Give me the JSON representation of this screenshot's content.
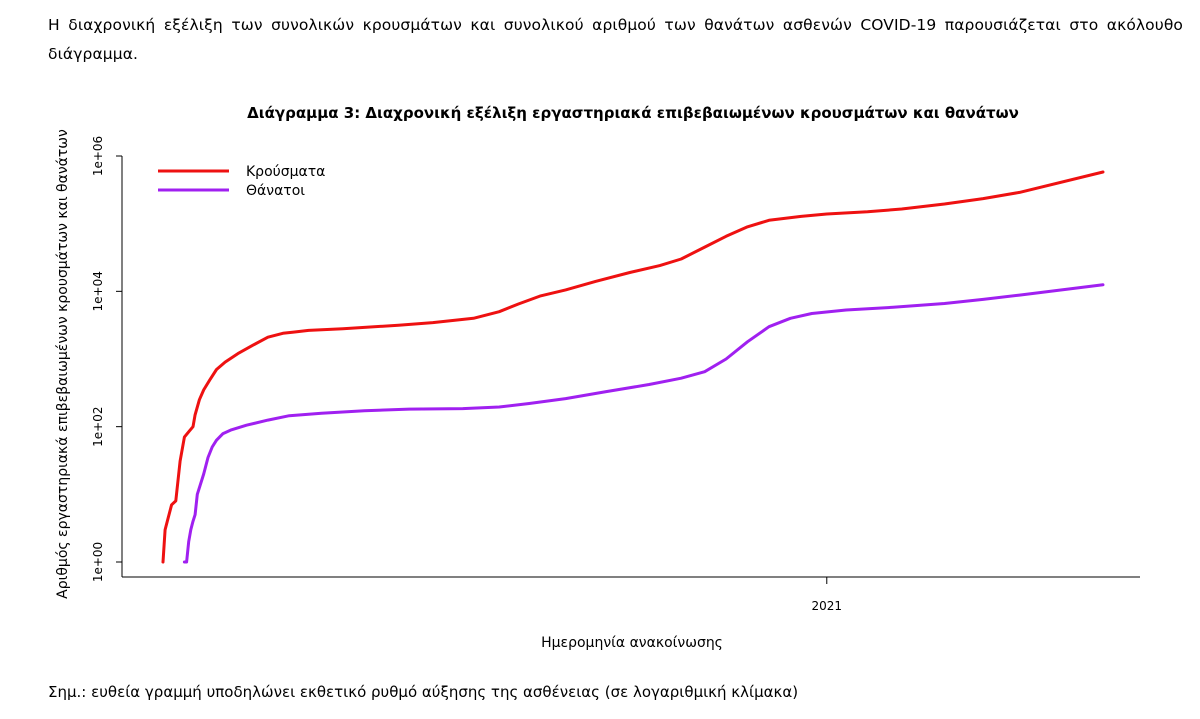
{
  "intro_text": "Η διαχρονική εξέλιξη των συνολικών κρουσμάτων και συνολικού αριθμού των θανάτων ασθενών COVID-19 παρουσιάζεται στο ακόλουθο διάγραμμα.",
  "note_text": "Σημ.: ευθεία γραμμή υποδηλώνει εκθετικό ρυθμό αύξησης της ασθένειας (σε λογαριθμική κλίμακα)",
  "chart_data": {
    "type": "line",
    "title": "Διάγραμμα 3: Διαχρονική εξέλιξη εργαστηριακά επιβεβαιωμένων κρουσμάτων και θανάτων",
    "xlabel": "Ημερομηνία ανακοίνωσης",
    "ylabel": "Αριθμός εργαστηριακά επιβεβαιωμένων κρουσμάτων και θανάτων",
    "y_scale": "log10",
    "ylim": [
      1,
      1000000
    ],
    "yticks": [
      {
        "value": 1,
        "label": "1e+00"
      },
      {
        "value": 100,
        "label": "1e+02"
      },
      {
        "value": 10000,
        "label": "1e+04"
      },
      {
        "value": 1000000,
        "label": "1e+06"
      }
    ],
    "xlim": [
      "2020-02-26",
      "2021-05-10"
    ],
    "xticks": [
      {
        "value": "2021-01-01",
        "label": "2021"
      }
    ],
    "legend_position": "top-left",
    "series": [
      {
        "name": "Κρούσματα",
        "color": "#ee1111",
        "points": [
          [
            "2020-02-26",
            1
          ],
          [
            "2020-02-27",
            3
          ],
          [
            "2020-02-28",
            4
          ],
          [
            "2020-03-01",
            7
          ],
          [
            "2020-03-03",
            8
          ],
          [
            "2020-03-05",
            31
          ],
          [
            "2020-03-07",
            70
          ],
          [
            "2020-03-09",
            84
          ],
          [
            "2020-03-11",
            100
          ],
          [
            "2020-03-12",
            150
          ],
          [
            "2020-03-14",
            250
          ],
          [
            "2020-03-16",
            350
          ],
          [
            "2020-03-19",
            500
          ],
          [
            "2020-03-22",
            700
          ],
          [
            "2020-03-26",
            900
          ],
          [
            "2020-04-01",
            1200
          ],
          [
            "2020-04-08",
            1600
          ],
          [
            "2020-04-15",
            2100
          ],
          [
            "2020-04-22",
            2400
          ],
          [
            "2020-04-27",
            2500
          ],
          [
            "2020-05-04",
            2650
          ],
          [
            "2020-05-20",
            2800
          ],
          [
            "2020-06-15",
            3150
          ],
          [
            "2020-07-01",
            3450
          ],
          [
            "2020-07-20",
            4000
          ],
          [
            "2020-08-01",
            5000
          ],
          [
            "2020-08-10",
            6500
          ],
          [
            "2020-08-20",
            8500
          ],
          [
            "2020-09-01",
            10500
          ],
          [
            "2020-09-15",
            14000
          ],
          [
            "2020-10-01",
            19000
          ],
          [
            "2020-10-15",
            24000
          ],
          [
            "2020-10-25",
            30000
          ],
          [
            "2020-11-05",
            45000
          ],
          [
            "2020-11-15",
            65000
          ],
          [
            "2020-11-25",
            90000
          ],
          [
            "2020-12-05",
            112000
          ],
          [
            "2020-12-20",
            128000
          ],
          [
            "2021-01-01",
            139000
          ],
          [
            "2021-01-20",
            150000
          ],
          [
            "2021-02-05",
            165000
          ],
          [
            "2021-02-25",
            195000
          ],
          [
            "2021-03-15",
            235000
          ],
          [
            "2021-04-01",
            290000
          ],
          [
            "2021-05-10",
            580000
          ]
        ]
      },
      {
        "name": "Θάνατοι",
        "color": "#a020f0",
        "points": [
          [
            "2020-03-07",
            1
          ],
          [
            "2020-03-08",
            1
          ],
          [
            "2020-03-09",
            2
          ],
          [
            "2020-03-10",
            3
          ],
          [
            "2020-03-11",
            4
          ],
          [
            "2020-03-12",
            5
          ],
          [
            "2020-03-13",
            10
          ],
          [
            "2020-03-16",
            20
          ],
          [
            "2020-03-18",
            35
          ],
          [
            "2020-03-20",
            50
          ],
          [
            "2020-03-22",
            63
          ],
          [
            "2020-03-25",
            79
          ],
          [
            "2020-03-29",
            90
          ],
          [
            "2020-04-05",
            105
          ],
          [
            "2020-04-15",
            125
          ],
          [
            "2020-04-25",
            145
          ],
          [
            "2020-05-10",
            158
          ],
          [
            "2020-05-30",
            172
          ],
          [
            "2020-06-20",
            182
          ],
          [
            "2020-07-15",
            185
          ],
          [
            "2020-08-01",
            195
          ],
          [
            "2020-08-15",
            220
          ],
          [
            "2020-09-01",
            260
          ],
          [
            "2020-09-20",
            330
          ],
          [
            "2020-10-10",
            420
          ],
          [
            "2020-10-25",
            520
          ],
          [
            "2020-11-05",
            650
          ],
          [
            "2020-11-15",
            1000
          ],
          [
            "2020-11-25",
            1800
          ],
          [
            "2020-12-05",
            3000
          ],
          [
            "2020-12-15",
            4000
          ],
          [
            "2020-12-25",
            4700
          ],
          [
            "2021-01-10",
            5300
          ],
          [
            "2021-02-01",
            5800
          ],
          [
            "2021-02-25",
            6600
          ],
          [
            "2021-03-15",
            7600
          ],
          [
            "2021-04-01",
            8800
          ],
          [
            "2021-05-10",
            12500
          ]
        ]
      }
    ]
  }
}
